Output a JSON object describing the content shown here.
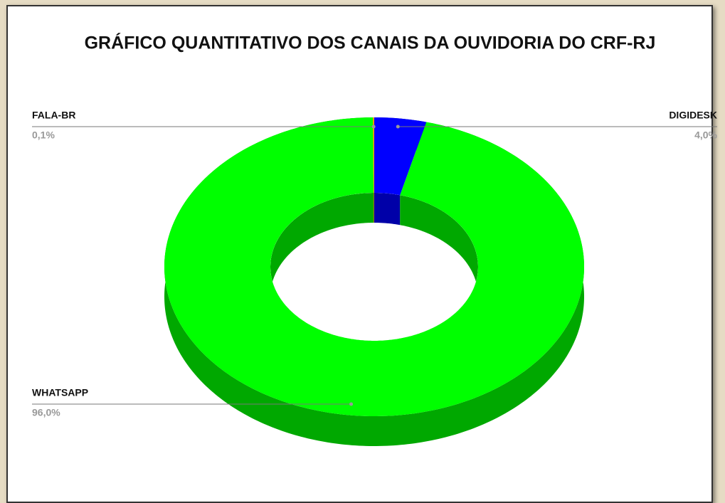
{
  "chart_data": {
    "type": "pie",
    "donut": true,
    "title": "GRÁFICO QUANTITATIVO DOS CANAIS DA OUVIDORIA DO CRF-RJ",
    "categories": [
      "DIGIDESK",
      "WHATSAPP",
      "FALA-BR"
    ],
    "values": [
      4.0,
      96.0,
      0.1
    ],
    "value_labels": [
      "4,0%",
      "96,0%",
      "0,1%"
    ],
    "colors": [
      "#0000ff",
      "#00ff00",
      "#ff9900"
    ]
  }
}
